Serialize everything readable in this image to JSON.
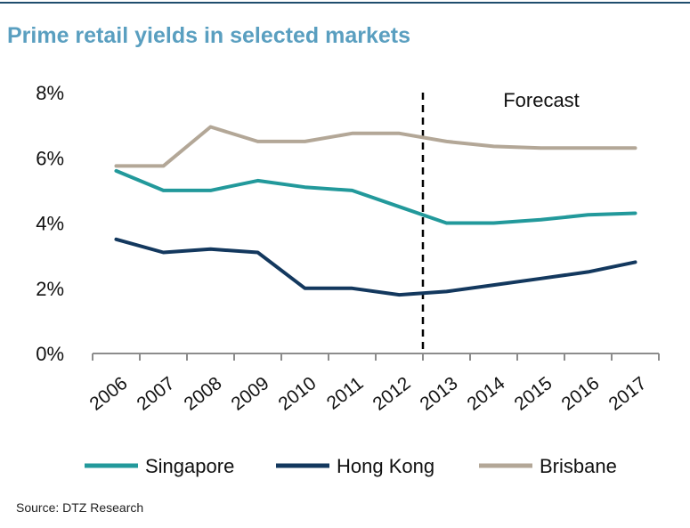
{
  "title": "Prime retail yields in selected markets",
  "source": "Source: DTZ Research",
  "chart_data": {
    "type": "line",
    "title": "Prime retail yields in selected markets",
    "x": [
      "2006",
      "2007",
      "2008",
      "2009",
      "2010",
      "2011",
      "2012",
      "2013",
      "2014",
      "2015",
      "2016",
      "2017"
    ],
    "y_ticks": [
      "0%",
      "2%",
      "4%",
      "6%",
      "8%"
    ],
    "ylim": [
      0,
      8
    ],
    "grid": false,
    "forecast_label": "Forecast",
    "forecast_start_between": [
      "2012",
      "2013"
    ],
    "series": [
      {
        "name": "Singapore",
        "color": "#22999b",
        "values": [
          5.6,
          5.0,
          5.0,
          5.3,
          5.1,
          5.0,
          4.5,
          4.0,
          4.0,
          4.1,
          4.25,
          4.3
        ]
      },
      {
        "name": "Hong Kong",
        "color": "#13385e",
        "values": [
          3.5,
          3.1,
          3.2,
          3.1,
          2.0,
          2.0,
          1.8,
          1.9,
          2.1,
          2.3,
          2.5,
          2.8
        ]
      },
      {
        "name": "Brisbane",
        "color": "#b3a797",
        "values": [
          5.75,
          5.75,
          6.95,
          6.5,
          6.5,
          6.75,
          6.75,
          6.5,
          6.35,
          6.3,
          6.3,
          6.3
        ]
      }
    ]
  }
}
